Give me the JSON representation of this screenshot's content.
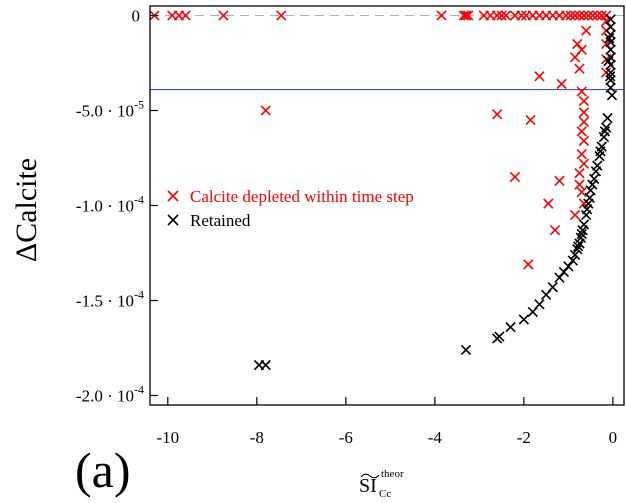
{
  "chart_data": {
    "type": "scatter",
    "panel_label": "(a)",
    "xlabel": {
      "base": "SI",
      "subscript": "Cc",
      "superscript": "theor"
    },
    "ylabel": "ΔCalcite",
    "xlim": [
      -10.4,
      0.25
    ],
    "ylim": [
      -0.000205,
      5e-06
    ],
    "x_ticks": [
      -10,
      -8,
      -6,
      -4,
      -2,
      0
    ],
    "x_tick_labels": [
      "-10",
      "-8",
      "-6",
      "-4",
      "-2",
      "0"
    ],
    "y_ticks": [
      0,
      -5e-05,
      -0.0001,
      -0.00015,
      -0.0002
    ],
    "y_tick_labels": [
      {
        "mantissa": "0",
        "exp": ""
      },
      {
        "mantissa": "-5.0 · 10",
        "exp": "-5"
      },
      {
        "mantissa": "-1.0 · 10",
        "exp": "-4"
      },
      {
        "mantissa": "-1.5 · 10",
        "exp": "-4"
      },
      {
        "mantissa": "-2.0 · 10",
        "exp": "-4"
      }
    ],
    "reference_lines": [
      {
        "orientation": "horizontal",
        "y": 0,
        "style": "dashed",
        "color": "#b0b0b0"
      },
      {
        "orientation": "horizontal",
        "y": -3.9e-05,
        "style": "solid",
        "color": "#3a50e0"
      }
    ],
    "legend": {
      "position": "middle-left",
      "entries": [
        "Calcite depleted within time step",
        "Retained"
      ]
    },
    "series": [
      {
        "name": "Calcite depleted within time step",
        "color": "#ff0000",
        "marker": "x",
        "points": [
          [
            -10.3,
            0
          ],
          [
            -9.9,
            0
          ],
          [
            -9.75,
            0
          ],
          [
            -9.6,
            0
          ],
          [
            -8.75,
            0
          ],
          [
            -7.45,
            0
          ],
          [
            -3.85,
            0
          ],
          [
            -3.35,
            0
          ],
          [
            -3.3,
            0
          ],
          [
            -3.25,
            0
          ],
          [
            -2.9,
            0
          ],
          [
            -2.75,
            0
          ],
          [
            -2.6,
            0
          ],
          [
            -2.5,
            0
          ],
          [
            -2.4,
            0
          ],
          [
            -2.2,
            0
          ],
          [
            -2.05,
            0
          ],
          [
            -1.95,
            0
          ],
          [
            -1.8,
            0
          ],
          [
            -1.65,
            0
          ],
          [
            -1.5,
            0
          ],
          [
            -1.35,
            0
          ],
          [
            -1.2,
            0
          ],
          [
            -1.05,
            0
          ],
          [
            -0.95,
            0
          ],
          [
            -0.85,
            0
          ],
          [
            -0.75,
            0
          ],
          [
            -0.65,
            0
          ],
          [
            -0.55,
            0
          ],
          [
            -0.45,
            0
          ],
          [
            -0.35,
            0
          ],
          [
            -0.25,
            0
          ],
          [
            -0.15,
            0
          ],
          [
            -0.15,
            -3e-06
          ],
          [
            -0.15,
            -8e-06
          ],
          [
            -0.15,
            -1.5e-05
          ],
          [
            -0.15,
            -2.3e-05
          ],
          [
            -0.15,
            -3e-05
          ],
          [
            -0.6,
            -8e-06
          ],
          [
            -0.8,
            -1.5e-05
          ],
          [
            -0.7,
            -1.8e-05
          ],
          [
            -0.85,
            -2.2e-05
          ],
          [
            -0.75,
            -2.8e-05
          ],
          [
            -1.65,
            -3.2e-05
          ],
          [
            -1.15,
            -3.6e-05
          ],
          [
            -0.7,
            -4e-05
          ],
          [
            -0.65,
            -4.5e-05
          ],
          [
            -0.65,
            -5.1e-05
          ],
          [
            -0.65,
            -5.6e-05
          ],
          [
            -0.7,
            -6.1e-05
          ],
          [
            -0.65,
            -6.6e-05
          ],
          [
            -0.7,
            -7.3e-05
          ],
          [
            -0.65,
            -7.8e-05
          ],
          [
            -0.75,
            -8.3e-05
          ],
          [
            -0.75,
            -8.9e-05
          ],
          [
            -0.7,
            -9.3e-05
          ],
          [
            -1.2,
            -8.7e-05
          ],
          [
            -2.6,
            -5.2e-05
          ],
          [
            -1.85,
            -5.5e-05
          ],
          [
            -2.2,
            -8.5e-05
          ],
          [
            -1.45,
            -9.9e-05
          ],
          [
            -1.3,
            -0.000113
          ],
          [
            -1.9,
            -0.000131
          ],
          [
            -0.85,
            -0.000105
          ],
          [
            -0.75,
            -0.00012
          ],
          [
            -0.65,
            -9.9e-05
          ],
          [
            -7.8,
            -5e-05
          ]
        ]
      },
      {
        "name": "Retained",
        "color": "#000000",
        "marker": "x",
        "points": [
          [
            -0.05,
            -2e-06
          ],
          [
            -0.05,
            -6e-06
          ],
          [
            -0.05,
            -1e-05
          ],
          [
            -0.05,
            -1.4e-05
          ],
          [
            -0.05,
            -1.8e-05
          ],
          [
            -0.05,
            -2.2e-05
          ],
          [
            -0.05,
            -2.6e-05
          ],
          [
            -0.05,
            -3e-05
          ],
          [
            -0.05,
            -3.4e-05
          ],
          [
            -0.05,
            -3.8e-05
          ],
          [
            -0.02,
            -4.2e-05
          ],
          [
            -0.08,
            -1.2e-05
          ],
          [
            -0.1,
            -2.4e-05
          ],
          [
            -0.06,
            -3.2e-05
          ],
          [
            -0.12,
            -5.4e-05
          ],
          [
            -0.15,
            -5.9e-05
          ],
          [
            -0.2,
            -6.4e-05
          ],
          [
            -0.25,
            -6.9e-05
          ],
          [
            -0.3,
            -7.4e-05
          ],
          [
            -0.35,
            -7.9e-05
          ],
          [
            -0.42,
            -8.6e-05
          ],
          [
            -0.5,
            -9.2e-05
          ],
          [
            -0.55,
            -9.9e-05
          ],
          [
            -0.6,
            -0.000105
          ],
          [
            -0.65,
            -0.00011
          ],
          [
            -0.7,
            -0.000115
          ],
          [
            -0.75,
            -0.00012
          ],
          [
            -0.8,
            -0.000123
          ],
          [
            -0.85,
            -0.000126
          ],
          [
            -0.9,
            -0.000129
          ],
          [
            -1.0,
            -0.000132
          ],
          [
            -1.1,
            -0.000135
          ],
          [
            -1.2,
            -0.000138
          ],
          [
            -1.35,
            -0.000143
          ],
          [
            -1.5,
            -0.000147
          ],
          [
            -1.65,
            -0.000152
          ],
          [
            -1.8,
            -0.000156
          ],
          [
            -2.0,
            -0.00016
          ],
          [
            -2.3,
            -0.000164
          ],
          [
            -2.55,
            -0.000169
          ],
          [
            -2.6,
            -0.00017
          ],
          [
            -3.3,
            -0.000176
          ],
          [
            -7.95,
            -0.000184
          ],
          [
            -7.8,
            -0.000184
          ],
          [
            -0.68,
            -0.000113
          ],
          [
            -0.72,
            -0.000117
          ],
          [
            -0.78,
            -0.0001215
          ],
          [
            -0.58,
            -0.000102
          ],
          [
            -0.52,
            -9.6e-05
          ],
          [
            -0.46,
            -8.9e-05
          ],
          [
            -0.38,
            -8.2e-05
          ],
          [
            -0.28,
            -7.15e-05
          ],
          [
            -0.18,
            -6.1e-05
          ]
        ]
      }
    ]
  }
}
